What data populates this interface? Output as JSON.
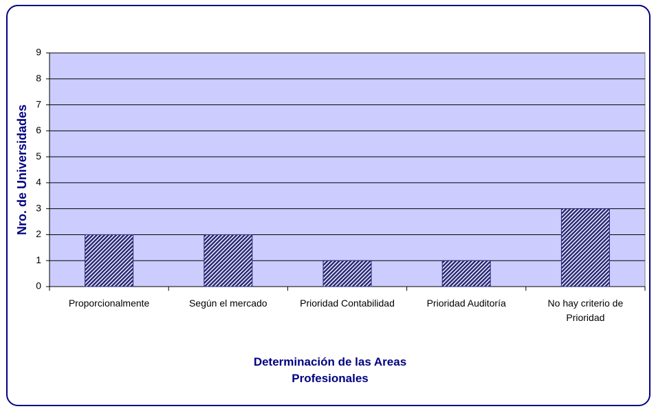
{
  "chart_data": {
    "type": "bar",
    "x_label": "Determinación de las Areas Profesionales",
    "y_label": "Nro. de Universidades",
    "categories": [
      "Proporcionalmente",
      "Según el mercado",
      "Prioridad Contabilidad",
      "Prioridad Auditoría",
      "No hay criterio de Prioridad"
    ],
    "values": [
      2,
      2,
      1,
      1,
      3
    ],
    "color": "#2a2a7a",
    "plot_background": "#ccccff",
    "ylim": [
      0,
      9
    ],
    "yticks": [
      0,
      1,
      2,
      3,
      4,
      5,
      6,
      7,
      8,
      9
    ],
    "grid": true
  }
}
